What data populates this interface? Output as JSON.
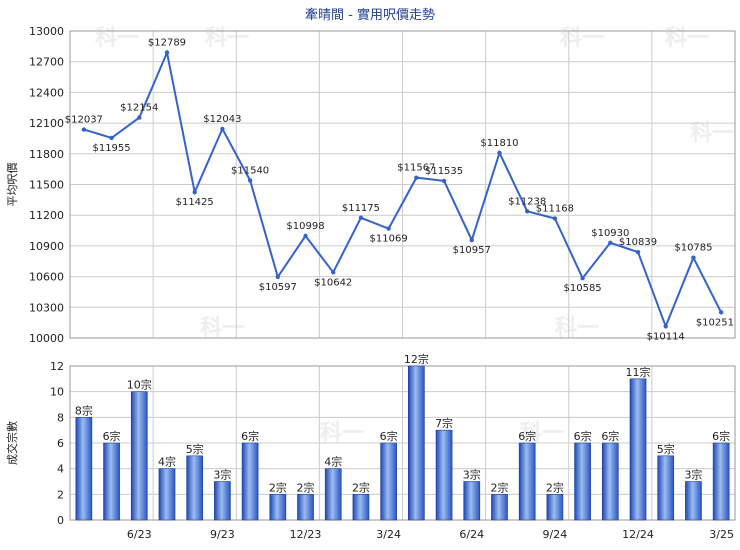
{
  "title": "牽晴間 - 實用呎價走勢",
  "watermark": "科一",
  "colors": {
    "line": "#3563c9",
    "bar": "#3a66c8",
    "bar_light": "#8fb0ec",
    "title": "#1f3f8f"
  },
  "chart_data": [
    {
      "type": "line",
      "title": "牽晴間 - 實用呎價走勢",
      "ylabel": "平均呎價",
      "ylim": [
        10000,
        13000
      ],
      "yticks": [
        "10000",
        "10300",
        "10600",
        "10900",
        "11200",
        "11500",
        "11800",
        "12100",
        "12400",
        "12700",
        "13000"
      ],
      "grid": true,
      "series": [
        {
          "values": [
            12037,
            11955,
            12154,
            12789,
            11425,
            12043,
            11540,
            10597,
            10998,
            10642,
            11175,
            11069,
            11567,
            11535,
            10957,
            11810,
            11238,
            11168,
            10585,
            10930,
            10839,
            10114,
            10785,
            10251
          ],
          "labels": [
            "$12037",
            "$11955",
            "$12154",
            "$12789",
            "$11425",
            "$12043",
            "$11540",
            "$10597",
            "$10998",
            "$10642",
            "$11175",
            "$11069",
            "$11567",
            "$11535",
            "$10957",
            "$11810",
            "$11238",
            "$11168",
            "$10585",
            "$10930",
            "$10839",
            "$10114",
            "$10785",
            "$10251"
          ]
        }
      ]
    },
    {
      "type": "bar",
      "ylabel": "成交宗數",
      "ylim": [
        0,
        12
      ],
      "yticks": [
        "0",
        "2",
        "4",
        "6",
        "8",
        "10",
        "12"
      ],
      "grid": true,
      "values": [
        8,
        6,
        10,
        4,
        5,
        3,
        6,
        2,
        2,
        4,
        2,
        6,
        12,
        7,
        3,
        2,
        6,
        2,
        6,
        6,
        11,
        5,
        3,
        6
      ],
      "labels": [
        "8宗",
        "6宗",
        "10宗",
        "4宗",
        "5宗",
        "3宗",
        "6宗",
        "2宗",
        "2宗",
        "4宗",
        "2宗",
        "6宗",
        "12宗",
        "7宗",
        "3宗",
        "2宗",
        "6宗",
        "2宗",
        "6宗",
        "6宗",
        "11宗",
        "5宗",
        "3宗",
        "6宗"
      ],
      "xticks": [
        "6/23",
        "9/23",
        "12/23",
        "3/24",
        "6/24",
        "9/24",
        "12/24",
        "3/25"
      ],
      "xtick_index": [
        2,
        5,
        8,
        11,
        14,
        17,
        20,
        23
      ]
    }
  ]
}
